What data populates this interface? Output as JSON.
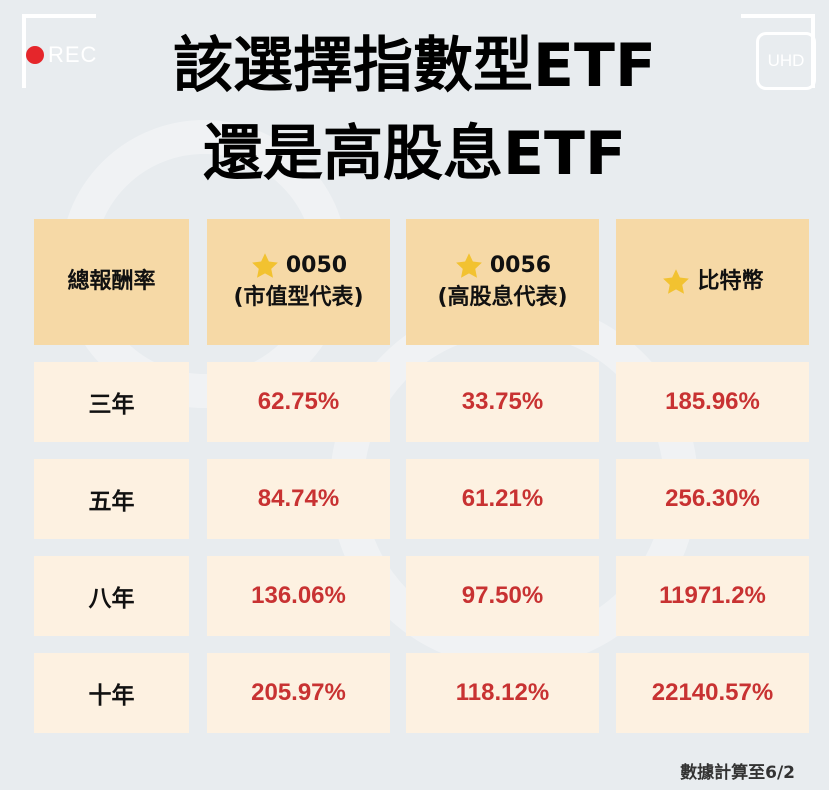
{
  "overlay": {
    "rec_label": "REC",
    "uhd_label": "UHD"
  },
  "title": {
    "line1": "該選擇指數型ETF",
    "line2": "還是高股息ETF"
  },
  "table": {
    "corner_header": "總報酬率",
    "columns": [
      {
        "line1": "0050",
        "line2": "(市值型代表)",
        "icon": "star-icon"
      },
      {
        "line1": "0056",
        "line2": "(高股息代表)",
        "icon": "star-icon"
      },
      {
        "line1": "比特幣",
        "line2": "",
        "icon": "star-icon"
      }
    ],
    "rows": [
      {
        "label": "三年",
        "values": [
          "62.75%",
          "33.75%",
          "185.96%"
        ]
      },
      {
        "label": "五年",
        "values": [
          "84.74%",
          "61.21%",
          "256.30%"
        ]
      },
      {
        "label": "八年",
        "values": [
          "136.06%",
          "97.50%",
          "11971.2%"
        ]
      },
      {
        "label": "十年",
        "values": [
          "205.97%",
          "118.12%",
          "22140.57%"
        ]
      }
    ]
  },
  "footnote": "數據計算至6/2",
  "colors": {
    "header_bg": "#f6d9a6",
    "cell_bg": "#fdf1e1",
    "value_text": "#c83232",
    "star": "#f2c230",
    "rec_dot": "#e5262b"
  }
}
